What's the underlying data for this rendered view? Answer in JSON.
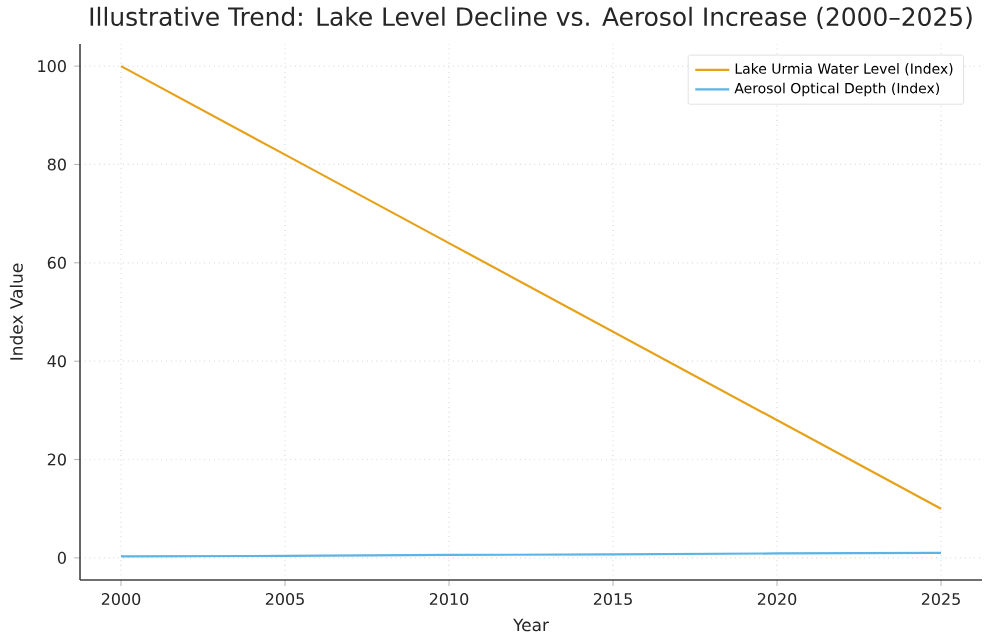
{
  "chart_data": {
    "type": "line",
    "title": "Illustrative Trend: Lake Level Decline vs. Aerosol Increase (2000–2025)",
    "xlabel": "Year",
    "ylabel": "Index Value",
    "x": [
      2000,
      2005,
      2010,
      2015,
      2020,
      2025
    ],
    "series": [
      {
        "name": "Lake Urmia Water Level (Index)",
        "color": "#e6a118",
        "values": [
          100,
          82,
          64,
          46,
          28,
          10
        ]
      },
      {
        "name": "Aerosol Optical Depth (Index)",
        "color": "#5bb4e5",
        "values": [
          0.3,
          0.4,
          0.6,
          0.7,
          0.9,
          1.0
        ]
      }
    ],
    "xlim": [
      1998.75,
      2026.25
    ],
    "ylim": [
      -4.5,
      104.5
    ],
    "xticks": [
      2000,
      2005,
      2010,
      2015,
      2020,
      2025
    ],
    "yticks": [
      0,
      20,
      40,
      60,
      80,
      100
    ],
    "grid": true,
    "legend": "top right",
    "line_style": "solid",
    "marker": "none"
  }
}
